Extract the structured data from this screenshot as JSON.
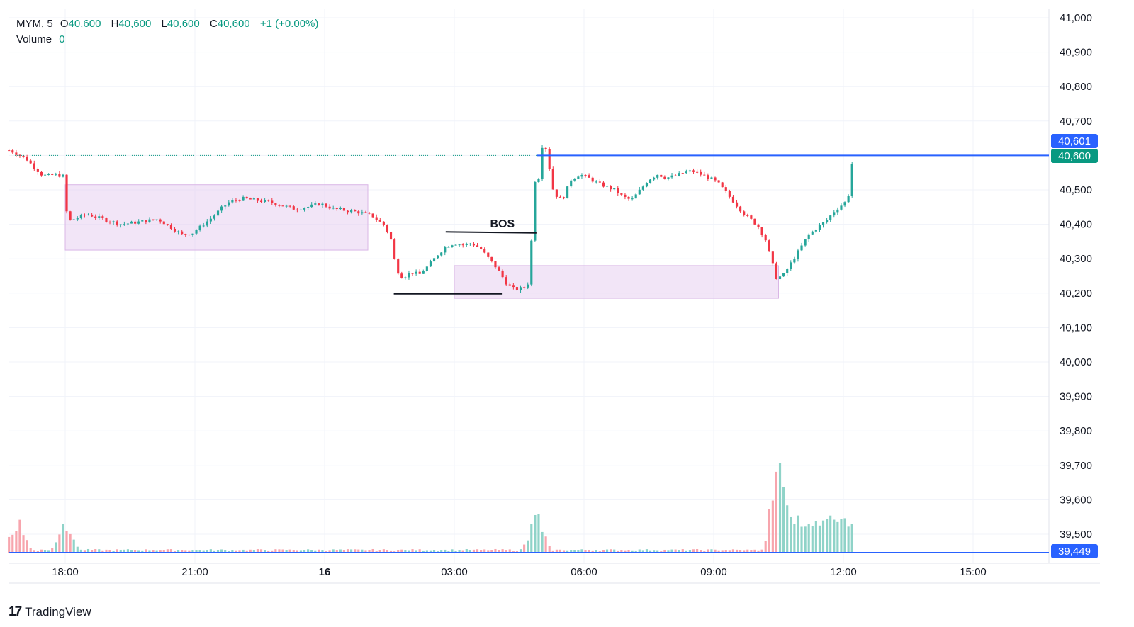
{
  "legend": {
    "symbol": "MYM, 5",
    "open_label": "O",
    "open": "40,600",
    "high_label": "H",
    "high": "40,600",
    "low_label": "L",
    "low": "40,600",
    "close_label": "C",
    "close": "40,600",
    "change": "+1 (+0.00%)",
    "volume_label": "Volume",
    "volume": "0"
  },
  "brand": {
    "name": "TradingView",
    "logo_text": "17"
  },
  "colors": {
    "up": "#26a69a",
    "down": "#f23645",
    "volume_up": "#8fd3c8",
    "volume_down": "#f7a5ad",
    "zone": "#e7cff0",
    "line_blue": "#2962ff",
    "tag_blue": "#2962ff",
    "tag_green": "#089981",
    "grid": "#f0f3fa"
  },
  "chart_data": {
    "type": "candlestick",
    "symbol": "MYM",
    "interval": "5",
    "ylim": [
      39449,
      41020
    ],
    "y_ticks": [
      "41,000",
      "40,900",
      "40,800",
      "40,700",
      "40,600",
      "40,500",
      "40,400",
      "40,300",
      "40,200",
      "40,100",
      "40,000",
      "39,900",
      "39,800",
      "39,700",
      "39,600",
      "39,500"
    ],
    "x_ticks": [
      "18:00",
      "21:00",
      "16",
      "03:00",
      "06:00",
      "09:00",
      "12:00",
      "15:00"
    ],
    "x_range_hours": [
      16.7,
      40.8
    ],
    "price_tags": [
      {
        "label": "40,601",
        "value": 40601,
        "color": "#2962ff"
      },
      {
        "label": "40,600",
        "value": 40600,
        "color": "#089981"
      },
      {
        "label": "39,449",
        "value": 39449,
        "color": "#2962ff"
      }
    ],
    "annotations": {
      "bos_label": "BOS",
      "bos_line": {
        "from": 26.8,
        "to": 28.9,
        "price": 40375
      },
      "low_line": {
        "from": 25.6,
        "to": 28.1,
        "price": 40198
      },
      "horizontal_line": {
        "from": 28.9,
        "price": 40600
      },
      "zones": [
        {
          "from": 18.0,
          "to": 25.0,
          "high": 40515,
          "low": 40325
        },
        {
          "from": 27.0,
          "to": 34.5,
          "high": 40280,
          "low": 40185
        }
      ]
    },
    "anchors": [
      [
        16.7,
        40615
      ],
      [
        16.8,
        40610
      ],
      [
        16.95,
        40600
      ],
      [
        17.1,
        40590
      ],
      [
        17.25,
        40570
      ],
      [
        17.45,
        40545
      ],
      [
        17.6,
        40540
      ],
      [
        17.75,
        40545
      ],
      [
        17.95,
        40540
      ],
      [
        18.0,
        40450
      ],
      [
        18.1,
        40410
      ],
      [
        18.3,
        40420
      ],
      [
        18.5,
        40430
      ],
      [
        18.75,
        40420
      ],
      [
        19.0,
        40410
      ],
      [
        19.3,
        40400
      ],
      [
        19.6,
        40405
      ],
      [
        19.9,
        40410
      ],
      [
        20.15,
        40415
      ],
      [
        20.4,
        40395
      ],
      [
        20.7,
        40370
      ],
      [
        20.95,
        40375
      ],
      [
        21.2,
        40400
      ],
      [
        21.4,
        40420
      ],
      [
        21.6,
        40445
      ],
      [
        21.8,
        40465
      ],
      [
        22.1,
        40475
      ],
      [
        22.4,
        40470
      ],
      [
        22.7,
        40465
      ],
      [
        23.0,
        40455
      ],
      [
        23.3,
        40445
      ],
      [
        23.6,
        40450
      ],
      [
        23.9,
        40460
      ],
      [
        24.2,
        40445
      ],
      [
        24.5,
        40440
      ],
      [
        24.8,
        40435
      ],
      [
        25.1,
        40425
      ],
      [
        25.25,
        40410
      ],
      [
        25.4,
        40395
      ],
      [
        25.55,
        40350
      ],
      [
        25.65,
        40270
      ],
      [
        25.8,
        40245
      ],
      [
        26.0,
        40260
      ],
      [
        26.2,
        40255
      ],
      [
        26.4,
        40280
      ],
      [
        26.6,
        40310
      ],
      [
        26.8,
        40335
      ],
      [
        27.0,
        40345
      ],
      [
        27.2,
        40340
      ],
      [
        27.4,
        40345
      ],
      [
        27.6,
        40330
      ],
      [
        27.8,
        40300
      ],
      [
        28.0,
        40270
      ],
      [
        28.2,
        40230
      ],
      [
        28.4,
        40210
      ],
      [
        28.6,
        40215
      ],
      [
        28.75,
        40235
      ],
      [
        28.82,
        40480
      ],
      [
        28.9,
        40560
      ],
      [
        28.98,
        40520
      ],
      [
        29.05,
        40660
      ],
      [
        29.15,
        40600
      ],
      [
        29.3,
        40490
      ],
      [
        29.5,
        40470
      ],
      [
        29.7,
        40530
      ],
      [
        29.9,
        40545
      ],
      [
        30.1,
        40535
      ],
      [
        30.3,
        40520
      ],
      [
        30.5,
        40510
      ],
      [
        30.7,
        40500
      ],
      [
        30.9,
        40480
      ],
      [
        31.1,
        40470
      ],
      [
        31.3,
        40500
      ],
      [
        31.5,
        40530
      ],
      [
        31.7,
        40545
      ],
      [
        31.9,
        40535
      ],
      [
        32.1,
        40540
      ],
      [
        32.3,
        40550
      ],
      [
        32.5,
        40555
      ],
      [
        32.7,
        40545
      ],
      [
        32.9,
        40535
      ],
      [
        33.1,
        40520
      ],
      [
        33.3,
        40490
      ],
      [
        33.5,
        40460
      ],
      [
        33.7,
        40430
      ],
      [
        33.9,
        40410
      ],
      [
        34.05,
        40390
      ],
      [
        34.2,
        40355
      ],
      [
        34.35,
        40290
      ],
      [
        34.45,
        40245
      ],
      [
        34.6,
        40250
      ],
      [
        34.8,
        40290
      ],
      [
        35.0,
        40330
      ],
      [
        35.2,
        40370
      ],
      [
        35.4,
        40390
      ],
      [
        35.6,
        40410
      ],
      [
        35.8,
        40440
      ],
      [
        36.0,
        40460
      ],
      [
        36.1,
        40470
      ],
      [
        36.15,
        40520
      ],
      [
        36.2,
        40575
      ],
      [
        36.25,
        40602
      ]
    ],
    "volume_spikes": [
      {
        "t": 16.75,
        "v": 180
      },
      {
        "t": 16.9,
        "v": 240
      },
      {
        "t": 18.0,
        "v": 240
      },
      {
        "t": 28.9,
        "v": 290
      },
      {
        "t": 34.5,
        "v": 760
      },
      {
        "t": 34.6,
        "v": 460
      },
      {
        "t": 36.2,
        "v": 260
      }
    ]
  }
}
